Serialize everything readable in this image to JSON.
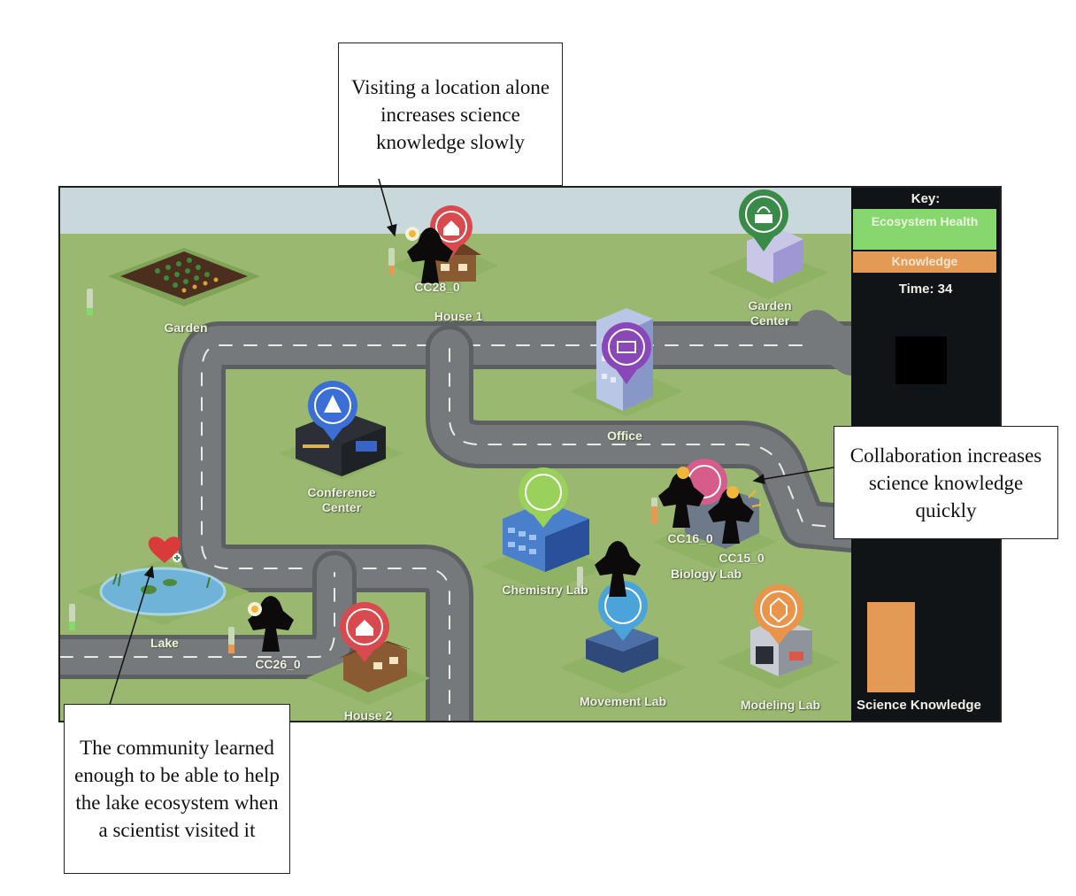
{
  "annotations": {
    "visit_alone": "Visiting a location alone increases science knowledge slowly",
    "collaboration": "Collaboration increases science knowledge quickly",
    "lake_help": "The community learned enough to be able to help the lake ecosystem when a scientist visited it"
  },
  "panel": {
    "key_title": "Key:",
    "ecosystem_health": "Ecosystem Health",
    "knowledge": "Knowledge",
    "time_label": "Time: 34",
    "science_knowledge": "Science Knowledge"
  },
  "locations": {
    "garden": "Garden",
    "house1": "House 1",
    "garden_center": "Garden Center",
    "office": "Office",
    "conference_center": "Conference Center",
    "chemistry_lab": "Chemistry Lab",
    "biology_lab": "Biology Lab",
    "lake": "Lake",
    "house2": "House 2",
    "movement_lab": "Movement Lab",
    "modeling_lab": "Modeling Lab"
  },
  "agents": {
    "a1": "CC28_0",
    "a2": "CC16_0",
    "a3": "CC15_0",
    "a4": "CC26_0"
  },
  "colors": {
    "grass": "#9ab870",
    "road": "#6f7274",
    "ecosystem_health": "#86d86e",
    "knowledge": "#e39a55",
    "panel": "#111417"
  }
}
